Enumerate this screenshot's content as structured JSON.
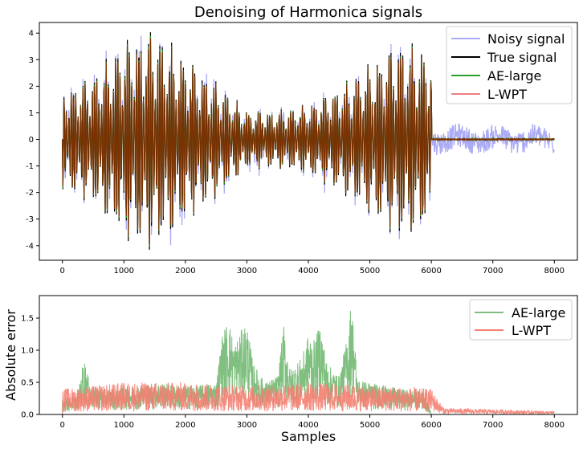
{
  "chart_data": [
    {
      "type": "line",
      "title": "Denoising of Harmonica signals",
      "xlabel": "",
      "ylabel": "",
      "xlim": [
        -375,
        8375
      ],
      "ylim": [
        -4.55,
        4.4
      ],
      "xticks": [
        0,
        1000,
        2000,
        3000,
        4000,
        5000,
        6000,
        7000,
        8000
      ],
      "yticks": [
        -4,
        -3,
        -2,
        -1,
        0,
        1,
        2,
        3,
        4
      ],
      "legend_position": "top-right",
      "grid": false,
      "signal_length": 6000,
      "total_samples": 8000,
      "envelope": {
        "x": [
          0,
          500,
          1000,
          1500,
          2000,
          2500,
          3000,
          3500,
          4000,
          4500,
          5000,
          5500,
          6000
        ],
        "amplitude": [
          1.7,
          2.2,
          3.4,
          3.8,
          2.8,
          2.0,
          1.0,
          1.0,
          1.2,
          1.8,
          2.6,
          3.4,
          3.0
        ]
      },
      "series": [
        {
          "name": "Noisy signal",
          "color": "#aaaaf5",
          "noise_level": 0.6
        },
        {
          "name": "True signal",
          "color": "#000000"
        },
        {
          "name": "AE-large",
          "color": "#2ca02c"
        },
        {
          "name": "L-WPT",
          "color": "#f08080",
          "overlap_color": "#7a3000"
        }
      ]
    },
    {
      "type": "area",
      "title": "",
      "xlabel": "Samples",
      "ylabel": "Absolute error",
      "xlim": [
        -375,
        8375
      ],
      "ylim": [
        0,
        1.85
      ],
      "xticks": [
        0,
        1000,
        2000,
        3000,
        4000,
        5000,
        6000,
        7000,
        8000
      ],
      "yticks": [
        0.0,
        0.5,
        1.0,
        1.5
      ],
      "legend_position": "top-right",
      "grid": false,
      "series": [
        {
          "name": "AE-large",
          "color": "#7fbf7f",
          "x": [
            0,
            250,
            350,
            450,
            600,
            900,
            1200,
            1600,
            1900,
            2200,
            2500,
            2600,
            2700,
            2800,
            2900,
            3000,
            3100,
            3300,
            3500,
            3600,
            3700,
            3900,
            4000,
            4100,
            4200,
            4300,
            4500,
            4650,
            4700,
            4800,
            5000,
            5500,
            5900,
            6000,
            8000
          ],
          "peaks": [
            0.25,
            0.3,
            0.9,
            0.45,
            0.4,
            0.4,
            0.45,
            0.5,
            0.45,
            0.45,
            0.5,
            1.25,
            1.5,
            1.1,
            1.3,
            1.45,
            0.8,
            0.5,
            0.6,
            1.4,
            0.7,
            0.9,
            1.25,
            1.15,
            1.45,
            0.8,
            0.6,
            1.3,
            1.85,
            0.55,
            0.5,
            0.4,
            0.35,
            0.0,
            0.0
          ]
        },
        {
          "name": "L-WPT",
          "color": "#f47f72",
          "x": [
            0,
            1000,
            2000,
            3000,
            4000,
            5000,
            6000,
            6200,
            7000,
            8000
          ],
          "peaks": [
            0.4,
            0.5,
            0.5,
            0.45,
            0.5,
            0.45,
            0.4,
            0.1,
            0.08,
            0.05
          ]
        }
      ]
    }
  ]
}
